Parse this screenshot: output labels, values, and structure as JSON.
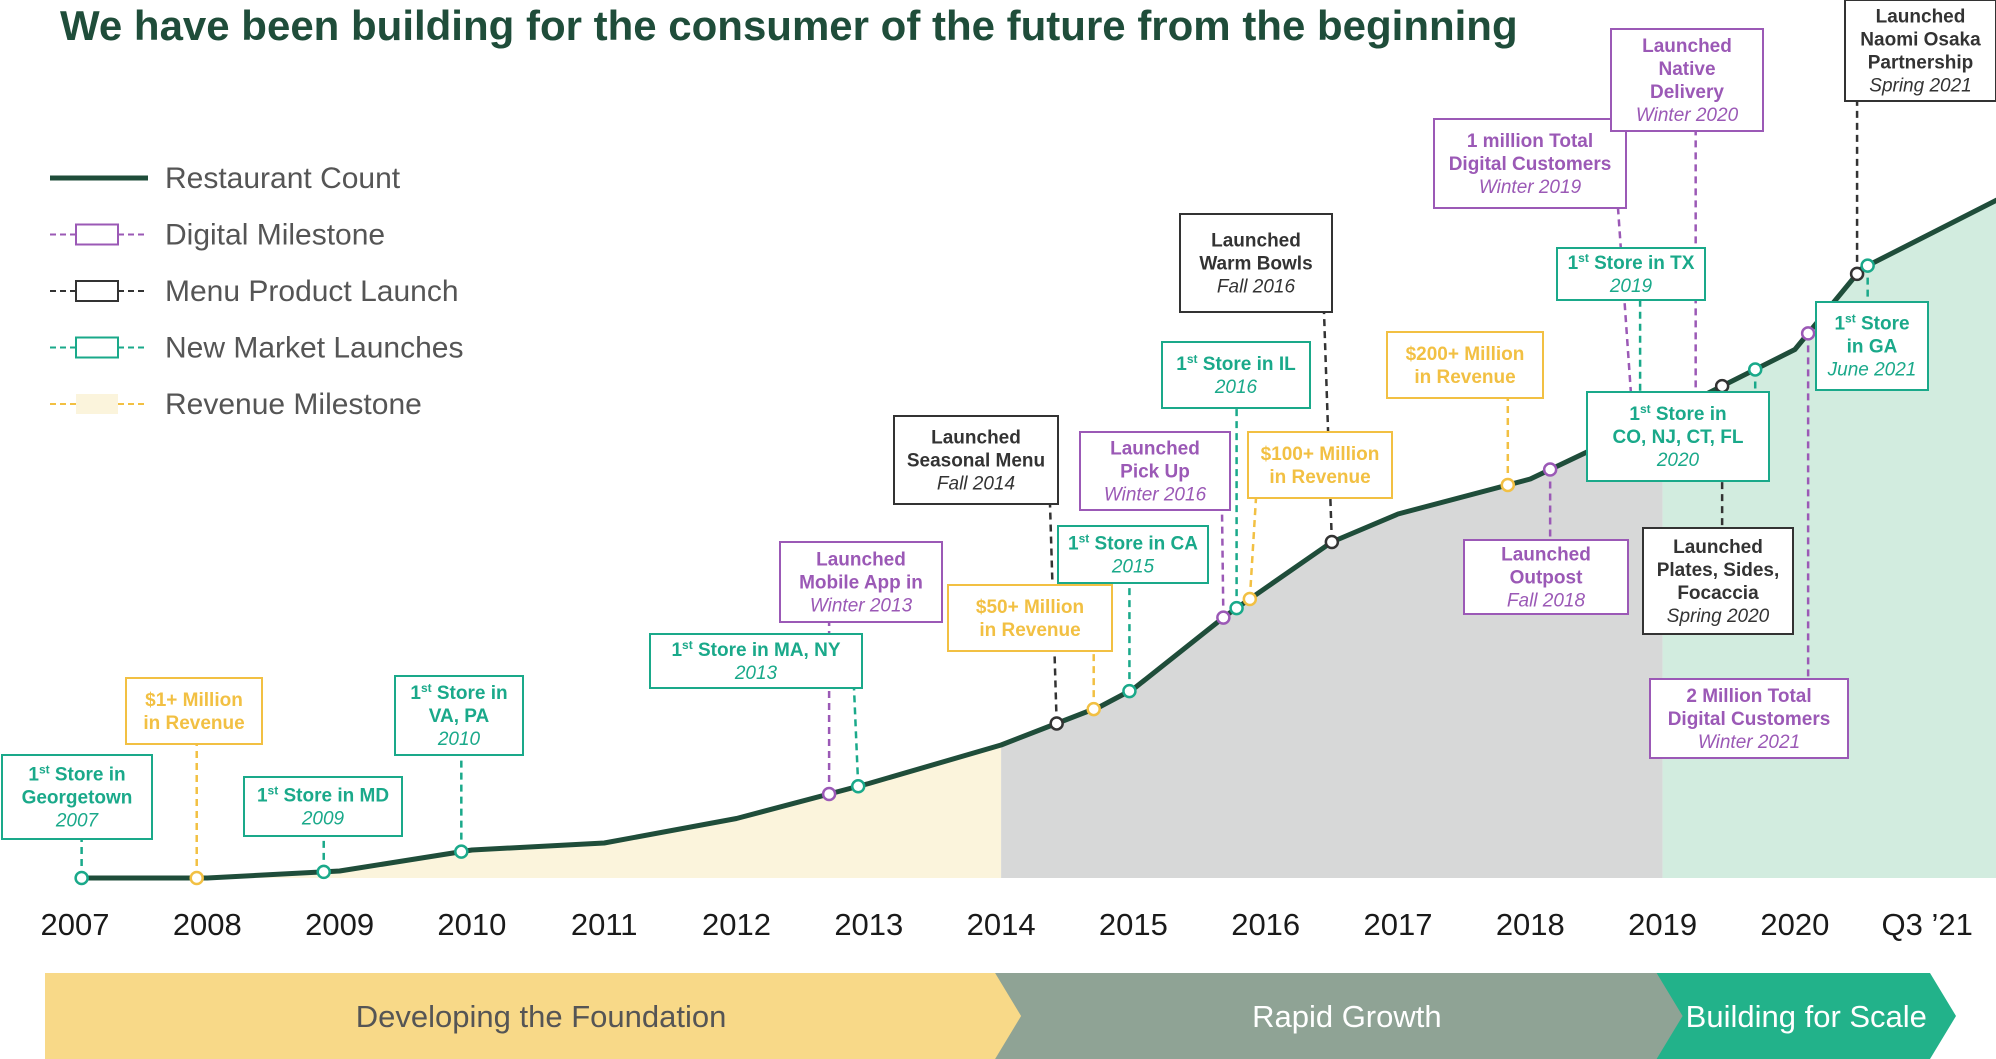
{
  "title": "We have been building for the consumer of the future from the beginning",
  "colors": {
    "restaurant": "#1f4d3a",
    "digital": "#9b59b6",
    "menu": "#333333",
    "market": "#1aa98a",
    "revenue": "#f2c043",
    "area_foundation": "#fbf4dc",
    "area_growth": "#d7d8d8",
    "area_scale": "#d2ecdf",
    "phase_foundation": "#f8d988",
    "phase_growth": "#8fa395",
    "phase_scale": "#22b28a"
  },
  "legend": [
    {
      "key": "restaurant",
      "label": "Restaurant Count"
    },
    {
      "key": "digital",
      "label": "Digital Milestone"
    },
    {
      "key": "menu",
      "label": "Menu Product Launch"
    },
    {
      "key": "market",
      "label": "New Market Launches"
    },
    {
      "key": "revenue",
      "label": "Revenue Milestone"
    }
  ],
  "phases": [
    {
      "label": "Developing the Foundation",
      "start": 2007,
      "end": 2014
    },
    {
      "label": "Rapid Growth",
      "start": 2014,
      "end": 2019
    },
    {
      "label": "Building for Scale",
      "start": 2019,
      "end": 2021.75
    }
  ],
  "chart_data": {
    "type": "line",
    "series": [
      {
        "name": "Restaurant Count",
        "x": [
          2007,
          2008,
          2009,
          2010,
          2011,
          2012,
          2013,
          2014,
          2014.75,
          2015,
          2015.7,
          2016.5,
          2017,
          2018,
          2019,
          2020,
          2020.5,
          2021.75
        ],
        "y": [
          0,
          0,
          2,
          8,
          10,
          17,
          27,
          38,
          49,
          54,
          75,
          96,
          104,
          114,
          132,
          151,
          174,
          198
        ]
      }
    ],
    "x_tick_labels": [
      "2007",
      "2008",
      "2009",
      "2010",
      "2011",
      "2012",
      "2013",
      "2014",
      "2015",
      "2016",
      "2017",
      "2018",
      "2019",
      "2020",
      "Q3 ’21"
    ],
    "x_tick_values": [
      2007,
      2008,
      2009,
      2010,
      2011,
      2012,
      2013,
      2014,
      2015,
      2016,
      2017,
      2018,
      2019,
      2020,
      2020.75
    ],
    "ylim": [
      0,
      200
    ],
    "milestones": [
      {
        "type": "market",
        "x": 2007.05,
        "lines": [
          {
            "t": "1",
            "sup": "st",
            "rest": " Store in"
          },
          {
            "t": "Georgetown"
          }
        ],
        "date": "2007"
      },
      {
        "type": "revenue",
        "x": 2007.92,
        "lines": [
          {
            "t": "$1+ Million"
          },
          {
            "t": "in Revenue"
          }
        ],
        "date": ""
      },
      {
        "type": "market",
        "x": 2008.88,
        "lines": [
          {
            "t": "1",
            "sup": "st",
            "rest": " Store in MD"
          }
        ],
        "date": "2009"
      },
      {
        "type": "market",
        "x": 2009.92,
        "lines": [
          {
            "t": "1",
            "sup": "st",
            "rest": " Store in"
          },
          {
            "t": "VA, PA"
          }
        ],
        "date": "2010"
      },
      {
        "type": "market",
        "x": 2012.92,
        "lines": [
          {
            "t": "1",
            "sup": "st",
            "rest": " Store in MA, NY"
          }
        ],
        "date": "2013"
      },
      {
        "type": "digital",
        "x": 2012.7,
        "lines": [
          {
            "t": "Launched"
          },
          {
            "t": "Mobile App in"
          }
        ],
        "date": "Winter 2013"
      },
      {
        "type": "menu",
        "x": 2014.42,
        "lines": [
          {
            "t": "Launched"
          },
          {
            "t": "Seasonal Menu"
          }
        ],
        "date": "Fall 2014"
      },
      {
        "type": "revenue",
        "x": 2014.7,
        "lines": [
          {
            "t": "$50+ Million"
          },
          {
            "t": "in Revenue"
          }
        ],
        "date": ""
      },
      {
        "type": "market",
        "x": 2014.97,
        "lines": [
          {
            "t": "1",
            "sup": "st",
            "rest": " Store in CA"
          }
        ],
        "date": "2015"
      },
      {
        "type": "digital",
        "x": 2015.68,
        "lines": [
          {
            "t": "Launched"
          },
          {
            "t": "Pick Up"
          }
        ],
        "date": "Winter 2016"
      },
      {
        "type": "market",
        "x": 2015.78,
        "lines": [
          {
            "t": "1",
            "sup": "st",
            "rest": " Store in IL"
          }
        ],
        "date": "2016"
      },
      {
        "type": "revenue",
        "x": 2015.88,
        "lines": [
          {
            "t": "$100+ Million"
          },
          {
            "t": "in Revenue"
          }
        ],
        "date": ""
      },
      {
        "type": "menu",
        "x": 2016.5,
        "lines": [
          {
            "t": "Launched"
          },
          {
            "t": "Warm Bowls"
          }
        ],
        "date": "Fall 2016"
      },
      {
        "type": "revenue",
        "x": 2017.83,
        "lines": [
          {
            "t": "$200+ Million"
          },
          {
            "t": "in Revenue"
          }
        ],
        "date": ""
      },
      {
        "type": "digital",
        "x": 2018.15,
        "lines": [
          {
            "t": "Launched"
          },
          {
            "t": "Outpost"
          }
        ],
        "date": "Fall 2018"
      },
      {
        "type": "digital",
        "x": 2018.78,
        "lines": [
          {
            "t": "1 million Total"
          },
          {
            "t": "Digital Customers"
          }
        ],
        "date": "Winter 2019"
      },
      {
        "type": "market",
        "x": 2018.83,
        "lines": [
          {
            "t": "1",
            "sup": "st",
            "rest": " Store in TX"
          }
        ],
        "date": "2019"
      },
      {
        "type": "digital",
        "x": 2019.25,
        "lines": [
          {
            "t": "Launched"
          },
          {
            "t": "Native"
          },
          {
            "t": "Delivery"
          }
        ],
        "date": "Winter 2020"
      },
      {
        "type": "menu",
        "x": 2019.45,
        "lines": [
          {
            "t": "Launched"
          },
          {
            "t": "Plates, Sides,"
          },
          {
            "t": "Focaccia"
          }
        ],
        "date": "Spring 2020"
      },
      {
        "type": "market",
        "x": 2019.7,
        "lines": [
          {
            "t": "1",
            "sup": "st",
            "rest": " Store in"
          },
          {
            "t": "CO, NJ, CT, FL"
          }
        ],
        "date": "2020"
      },
      {
        "type": "digital",
        "x": 2020.1,
        "lines": [
          {
            "t": "2 Million Total"
          },
          {
            "t": "Digital Customers"
          }
        ],
        "date": "Winter 2021"
      },
      {
        "type": "menu",
        "x": 2020.47,
        "lines": [
          {
            "t": "Launched"
          },
          {
            "t": "Naomi Osaka"
          },
          {
            "t": "Partnership"
          }
        ],
        "date": "Spring 2021"
      },
      {
        "type": "market",
        "x": 2020.55,
        "lines": [
          {
            "t": "1",
            "sup": "st",
            "rest": " Store"
          },
          {
            "t": "in GA"
          }
        ],
        "date": "June 2021"
      }
    ]
  }
}
